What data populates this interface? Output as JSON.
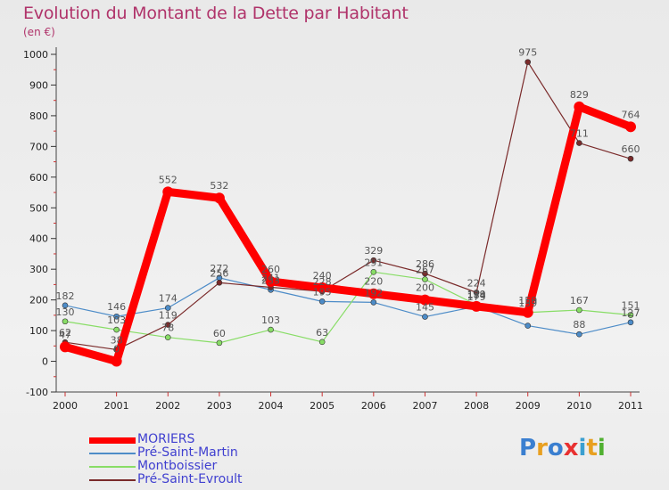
{
  "header": {
    "title": "Evolution du Montant de la Dette par Habitant",
    "unit": "(en €)"
  },
  "logo": {
    "text": "Proxiti",
    "letters": [
      "P",
      "r",
      "o",
      "x",
      "i",
      "t",
      "i"
    ],
    "colors": [
      "#3a7fd0",
      "#e8a020",
      "#3a7fd0",
      "#e83030",
      "#3a9fd0",
      "#e8a020",
      "#50b030"
    ]
  },
  "chart_data": {
    "type": "line",
    "categories": [
      "2000",
      "2001",
      "2002",
      "2003",
      "2004",
      "2005",
      "2006",
      "2007",
      "2008",
      "2009",
      "2010",
      "2011"
    ],
    "ylim": [
      -100,
      1000
    ],
    "yticks": [
      -100,
      0,
      100,
      200,
      300,
      400,
      500,
      600,
      700,
      800,
      900,
      1000
    ],
    "grid": false,
    "legend_position": "bottom-left",
    "series": [
      {
        "name": "MORIERS",
        "color": "#ff0000",
        "values": [
          47,
          0,
          552,
          532,
          260,
          240,
          220,
          200,
          179,
          159,
          829,
          764
        ]
      },
      {
        "name": "Pré-Saint-Martin",
        "color": "#4d8cc8",
        "values": [
          182,
          146,
          174,
          272,
          233,
          195,
          192,
          145,
          179,
          116,
          88,
          127
        ]
      },
      {
        "name": "Montboissier",
        "color": "#88dd66",
        "values": [
          130,
          103,
          78,
          60,
          103,
          63,
          291,
          267,
          184,
          159,
          167,
          151
        ]
      },
      {
        "name": "Pré-Saint-Evroult",
        "color": "#7a2a2a",
        "values": [
          62,
          38,
          119,
          256,
          241,
          228,
          329,
          286,
          224,
          975,
          711,
          660
        ]
      }
    ],
    "labels": {
      "MORIERS": [
        "47",
        "0",
        "552",
        "532",
        "260",
        "240",
        "220",
        "200",
        "179",
        "159",
        "829",
        "764"
      ],
      "Pré-Saint-Martin": [
        "182",
        "146",
        "174",
        "272",
        "233",
        "195",
        "192",
        "145",
        "179",
        "",
        "88",
        "127"
      ],
      "Montboissier": [
        "130",
        "103",
        "78",
        "60",
        "103",
        "63",
        "291",
        "267",
        "184",
        "159",
        "167",
        "151"
      ],
      "Pré-Saint-Evroult": [
        "62",
        "38",
        "119",
        "256",
        "241",
        "228",
        "329",
        "286",
        "224",
        "975",
        "711",
        "660"
      ]
    }
  }
}
